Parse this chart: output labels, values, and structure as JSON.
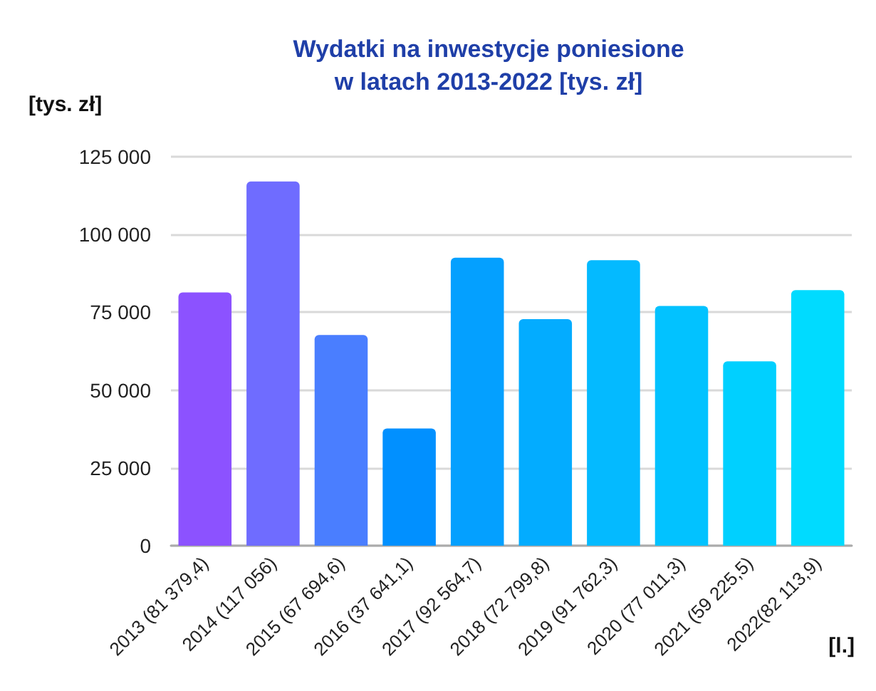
{
  "chart_data": {
    "type": "bar",
    "title": "Wydatki na inwestycje poniesione\nw latach 2013-2022 [tys. zł]",
    "xlabel": "[l.]",
    "ylabel": "[tys. zł]",
    "categories": [
      "2013 (81 379,4)",
      "2014 (117 056)",
      "2015 (67 694,6)",
      "2016 (37 641,1)",
      "2017 (92 564,7)",
      "2018 (72 799,8)",
      "2019 (91 762,3)",
      "2020 (77 011,3)",
      "2021 (59 225,5)",
      "2022(82 113,9)"
    ],
    "values": [
      81379.4,
      117056,
      67694.6,
      37641.1,
      92564.7,
      72799.8,
      91762.3,
      77011.3,
      59225.5,
      82113.9
    ],
    "colors": [
      "#8c52ff",
      "#6f6cff",
      "#4a7eff",
      "#0190ff",
      "#04a0ff",
      "#03acff",
      "#04baff",
      "#02c2ff",
      "#00d0ff",
      "#00dbff"
    ],
    "ylim": [
      0,
      125000
    ],
    "yticks": [
      {
        "value": 0,
        "label": "0"
      },
      {
        "value": 25000,
        "label": "25 000"
      },
      {
        "value": 50000,
        "label": "50 000"
      },
      {
        "value": 75000,
        "label": "75 000"
      },
      {
        "value": 100000,
        "label": "100 000"
      },
      {
        "value": 125000,
        "label": "125 000"
      }
    ],
    "grid": "y"
  }
}
